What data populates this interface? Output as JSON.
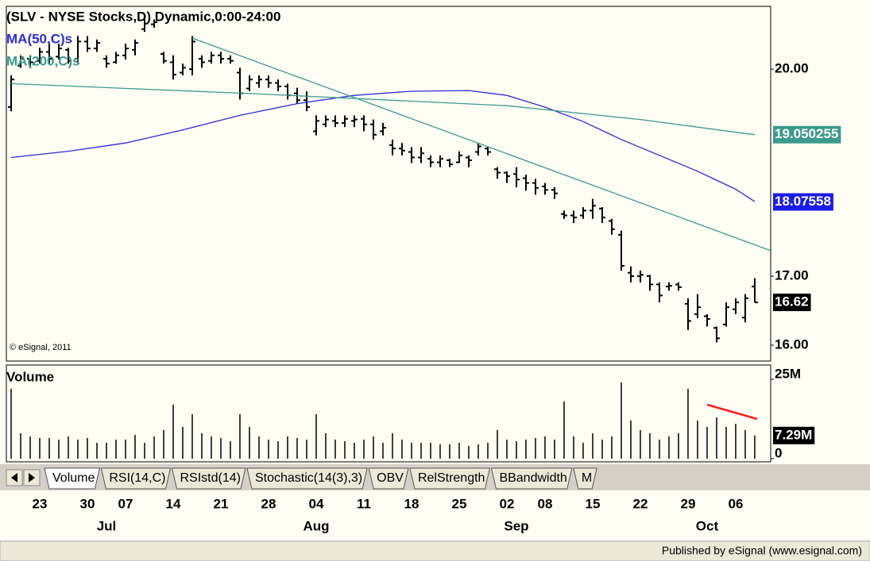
{
  "chart_data": {
    "type": "ohlc",
    "title": "(SLV - NYSE Stocks,D) Dynamic,0:00-24:00",
    "copyright": "© eSignal, 2011",
    "categories": [
      null,
      null,
      null,
      "23",
      null,
      null,
      null,
      null,
      "30",
      null,
      null,
      null,
      "07",
      null,
      null,
      null,
      null,
      "14",
      null,
      null,
      null,
      null,
      "21",
      null,
      null,
      null,
      null,
      "28",
      null,
      null,
      null,
      null,
      "04",
      null,
      null,
      null,
      null,
      "11",
      null,
      null,
      null,
      null,
      "18",
      null,
      null,
      null,
      null,
      "25",
      null,
      null,
      null,
      null,
      "02",
      null,
      null,
      null,
      "08",
      null,
      null,
      null,
      null,
      "15",
      null,
      null,
      null,
      null,
      "22",
      null,
      null,
      null,
      null,
      "29",
      null,
      null,
      null,
      null,
      "06",
      null,
      null
    ],
    "month_labels": [
      null,
      null,
      null,
      null,
      null,
      null,
      null,
      null,
      null,
      null,
      "Jul",
      null,
      null,
      null,
      null,
      null,
      null,
      null,
      null,
      null,
      null,
      null,
      null,
      null,
      null,
      null,
      null,
      null,
      null,
      null,
      null,
      null,
      "Aug",
      null,
      null,
      null,
      null,
      null,
      null,
      null,
      null,
      null,
      null,
      null,
      null,
      null,
      null,
      null,
      null,
      null,
      null,
      null,
      null,
      "Sep",
      null,
      null,
      null,
      null,
      null,
      null,
      null,
      null,
      null,
      null,
      null,
      null,
      null,
      null,
      null,
      null,
      null,
      null,
      null,
      "Oct",
      null,
      null,
      null,
      null,
      null
    ],
    "open": [
      19.45,
      20.05,
      20.15,
      20.12,
      20.25,
      20.18,
      20.28,
      20.15,
      20.4,
      20.3,
      20.15,
      20.1,
      20.2,
      20.28,
      20.58,
      20.65,
      20.22,
      20.1,
      19.95,
      20.0,
      20.15,
      20.12,
      20.2,
      20.15,
      19.95,
      19.72,
      19.8,
      19.85,
      19.8,
      19.75,
      19.65,
      19.55,
      19.1,
      19.2,
      19.25,
      19.22,
      19.25,
      19.28,
      19.2,
      19.1,
      18.9,
      18.85,
      18.8,
      18.72,
      18.7,
      18.65,
      18.68,
      18.65,
      18.72,
      18.8,
      18.85,
      18.55,
      18.5,
      18.48,
      18.42,
      18.35,
      18.3,
      18.25,
      17.9,
      17.88,
      17.88,
      17.95,
      17.98,
      17.8,
      17.6,
      17.05,
      17.0,
      17.0,
      16.88,
      16.85,
      16.88,
      16.6,
      16.45,
      16.42,
      16.25,
      16.3,
      16.52,
      16.4,
      16.85
    ],
    "high": [
      19.91,
      20.2,
      20.2,
      20.31,
      20.37,
      20.37,
      20.31,
      20.48,
      20.48,
      20.43,
      20.2,
      20.25,
      20.37,
      20.43,
      20.72,
      20.72,
      20.25,
      20.2,
      20.08,
      20.48,
      20.2,
      20.25,
      20.25,
      20.2,
      20.02,
      19.91,
      19.91,
      19.91,
      19.85,
      19.79,
      19.73,
      19.68,
      19.33,
      19.33,
      19.33,
      19.33,
      19.33,
      19.33,
      19.27,
      19.22,
      18.98,
      18.93,
      18.87,
      18.87,
      18.75,
      18.75,
      18.7,
      18.81,
      18.75,
      18.93,
      18.87,
      18.58,
      18.52,
      18.58,
      18.47,
      18.41,
      18.35,
      18.29,
      17.95,
      17.95,
      18.0,
      18.12,
      18.0,
      17.83,
      17.66,
      17.14,
      17.08,
      17.02,
      16.91,
      16.91,
      16.91,
      16.68,
      16.74,
      16.45,
      16.27,
      16.62,
      16.68,
      16.74,
      16.97
    ],
    "low": [
      19.39,
      20.02,
      20.02,
      20.08,
      20.08,
      20.14,
      20.08,
      20.08,
      20.25,
      20.25,
      20.02,
      20.08,
      20.14,
      20.2,
      20.54,
      20.6,
      20.08,
      19.85,
      19.91,
      19.91,
      20.02,
      20.08,
      20.08,
      20.08,
      19.56,
      19.68,
      19.73,
      19.73,
      19.68,
      19.56,
      19.5,
      19.39,
      19.04,
      19.16,
      19.16,
      19.16,
      19.16,
      19.1,
      18.98,
      19.04,
      18.75,
      18.75,
      18.64,
      18.64,
      18.58,
      18.58,
      18.58,
      18.64,
      18.58,
      18.75,
      18.75,
      18.41,
      18.35,
      18.29,
      18.24,
      18.18,
      18.18,
      18.12,
      17.83,
      17.77,
      17.83,
      17.83,
      17.77,
      17.6,
      17.08,
      16.91,
      16.91,
      16.79,
      16.62,
      16.79,
      16.79,
      16.22,
      16.39,
      16.27,
      16.04,
      16.27,
      16.45,
      16.33,
      16.62
    ],
    "close": [
      19.85,
      20.15,
      20.1,
      20.25,
      20.15,
      20.3,
      20.12,
      20.4,
      20.3,
      20.38,
      20.08,
      20.2,
      20.3,
      20.38,
      20.66,
      20.68,
      20.12,
      19.92,
      20.02,
      20.4,
      20.1,
      20.2,
      20.15,
      20.12,
      19.65,
      19.85,
      19.85,
      19.8,
      19.75,
      19.62,
      19.55,
      19.45,
      19.25,
      19.27,
      19.22,
      19.28,
      19.27,
      19.2,
      19.05,
      19.15,
      18.85,
      18.82,
      18.72,
      18.78,
      18.65,
      18.7,
      18.62,
      18.75,
      18.68,
      18.88,
      18.8,
      18.5,
      18.45,
      18.4,
      18.35,
      18.28,
      18.25,
      18.2,
      17.88,
      17.85,
      17.95,
      18.02,
      17.85,
      17.68,
      17.15,
      17.0,
      17.02,
      16.88,
      16.72,
      16.86,
      16.84,
      16.35,
      16.55,
      16.38,
      16.1,
      16.55,
      16.62,
      16.68,
      16.62
    ],
    "color": "#000000",
    "xlim": [
      -0.5,
      79.67
    ],
    "ylim": [
      15.77,
      20.91
    ],
    "yticks": [
      {
        "value": 20,
        "label": "20.00"
      },
      {
        "value": 17,
        "label": "17.00"
      },
      {
        "value": 16,
        "label": "16.00"
      }
    ],
    "series": [
      {
        "name": "MA(50,C)s",
        "color": "#2b2bd6",
        "x": [
          0,
          6,
          12,
          18,
          24,
          30,
          36,
          42,
          48,
          52,
          56,
          60,
          64,
          68,
          72,
          76,
          78
        ],
        "values": [
          18.72,
          18.81,
          18.93,
          19.12,
          19.33,
          19.5,
          19.62,
          19.68,
          19.69,
          19.62,
          19.45,
          19.24,
          18.98,
          18.75,
          18.52,
          18.26,
          18.08
        ]
      },
      {
        "name": "MA(200,C)s",
        "color": "#3c9a8c",
        "x": [
          0,
          26,
          52,
          66,
          78
        ],
        "values": [
          19.79,
          19.64,
          19.47,
          19.27,
          19.05
        ]
      }
    ],
    "last_value_labels": [
      {
        "value": 19.050255,
        "color": "#3c9a8c"
      },
      {
        "value": 18.07558,
        "color": "#1c1ce8"
      },
      {
        "value": 16.62,
        "color": "#000000"
      }
    ],
    "trendline": {
      "color": "#3c9a8c",
      "x": [
        19,
        79.67
      ],
      "values": [
        20.45,
        17.37
      ]
    },
    "volume": {
      "title": "Volume",
      "color": "#000000",
      "values": [
        22,
        8,
        7,
        6.5,
        6.5,
        6,
        7,
        6,
        6.5,
        5,
        5,
        6,
        6,
        7.5,
        5,
        7,
        9,
        17,
        10,
        14,
        8,
        7,
        6.5,
        5.5,
        14,
        10,
        7,
        6,
        5.5,
        7,
        6.5,
        6,
        14,
        8,
        6,
        5.5,
        5,
        6,
        7,
        5,
        8,
        6,
        5,
        5,
        5,
        4.5,
        4.5,
        5,
        4,
        4.5,
        5,
        9,
        6,
        5.5,
        6,
        6.5,
        7,
        6,
        18,
        7,
        5,
        8,
        6,
        7,
        24,
        12,
        9,
        8,
        6,
        7,
        8,
        22,
        12,
        10,
        13,
        10,
        11,
        9,
        7.29
      ],
      "ylim": [
        0,
        29
      ],
      "yticks": [
        {
          "value": 25,
          "label": "25M"
        },
        0
      ],
      "last_label": {
        "value": 7.29,
        "label": "7.29M",
        "color": "#000000"
      },
      "annotation": {
        "color": "#ff2020",
        "x": [
          73,
          78.25
        ],
        "values": [
          17,
          12.5
        ]
      }
    }
  },
  "tabs": [
    "Volume",
    "RSI(14,C)",
    "RSIstd(14)",
    "Stochastic(14(3),3)",
    "OBV",
    "RelStrength",
    "BBandwidth",
    "M"
  ],
  "footer": "Published by eSignal (www.esignal.com)"
}
